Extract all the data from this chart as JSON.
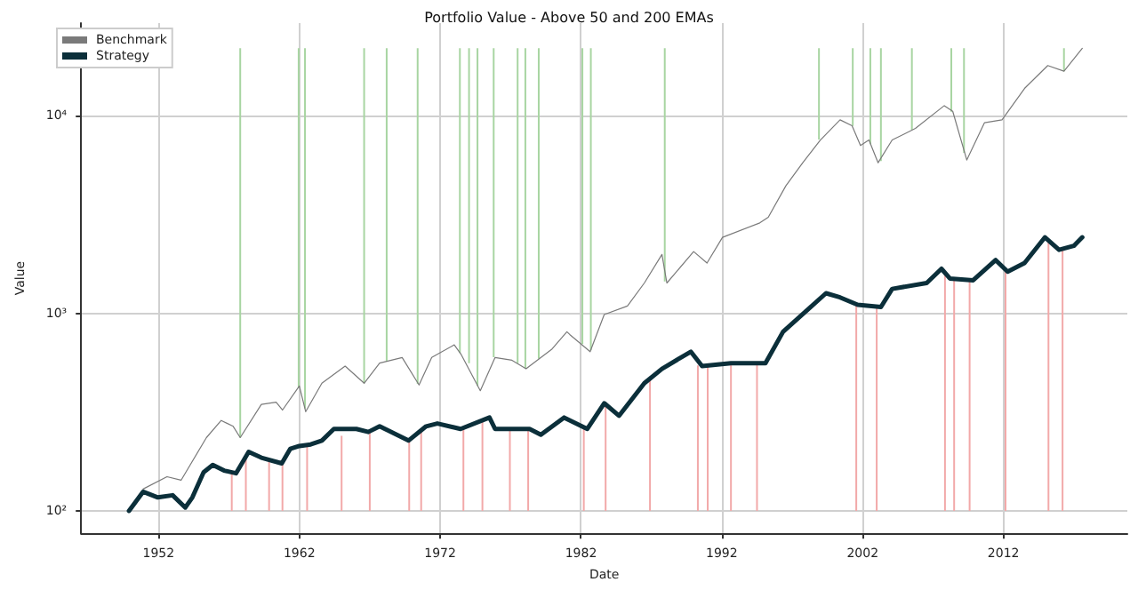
{
  "chart_data": {
    "type": "line",
    "title": "Portfolio Value - Above 50 and 200 EMAs",
    "xlabel": "Date",
    "ylabel": "Value",
    "xlim": [
      1946.5,
      2020.8
    ],
    "xticks": [
      1952,
      1962,
      1972,
      1982,
      1992,
      2002,
      2012
    ],
    "ylim": [
      77,
      29500
    ],
    "yticks": [
      {
        "value": 100,
        "label": "10²"
      },
      {
        "value": 1000,
        "label": "10³"
      },
      {
        "value": 10000,
        "label": "10⁴"
      }
    ],
    "log": "y",
    "grid": true,
    "legend": "top left",
    "marker": "none",
    "line_style": "solid",
    "series": [
      {
        "color": "#a8d5a2",
        "x": [
          1957.8,
          1957.8
        ],
        "values": [
          22000,
          235
        ]
      },
      {
        "color": "#a8d5a2",
        "x": [
          1961.95,
          1961.95
        ],
        "values": [
          22000,
          420
        ]
      },
      {
        "color": "#a8d5a2",
        "x": [
          1962.4,
          1962.4
        ],
        "values": [
          22000,
          330
        ]
      },
      {
        "color": "#a8d5a2",
        "x": [
          1966.6,
          1966.6
        ],
        "values": [
          22000,
          443
        ]
      },
      {
        "color": "#a8d5a2",
        "x": [
          1968.2,
          1968.2
        ],
        "values": [
          22000,
          570
        ]
      },
      {
        "color": "#a8d5a2",
        "x": [
          1970.4,
          1970.4
        ],
        "values": [
          22000,
          440
        ]
      },
      {
        "color": "#a8d5a2",
        "x": [
          1973.4,
          1973.4
        ],
        "values": [
          22000,
          630
        ]
      },
      {
        "color": "#a8d5a2",
        "x": [
          1974.05,
          1974.05
        ],
        "values": [
          22000,
          560
        ]
      },
      {
        "color": "#a8d5a2",
        "x": [
          1974.65,
          1974.65
        ],
        "values": [
          22000,
          430
        ]
      },
      {
        "color": "#a8d5a2",
        "x": [
          1975.8,
          1975.8
        ],
        "values": [
          22000,
          600
        ]
      },
      {
        "color": "#a8d5a2",
        "x": [
          1977.5,
          1977.5
        ],
        "values": [
          22000,
          560
        ]
      },
      {
        "color": "#a8d5a2",
        "x": [
          1978.05,
          1978.05
        ],
        "values": [
          22000,
          525
        ]
      },
      {
        "color": "#a8d5a2",
        "x": [
          1979,
          1979
        ],
        "values": [
          22000,
          590
        ]
      },
      {
        "color": "#a8d5a2",
        "x": [
          1982.1,
          1982.1
        ],
        "values": [
          22000,
          700
        ]
      },
      {
        "color": "#a8d5a2",
        "x": [
          1982.7,
          1982.7
        ],
        "values": [
          22000,
          650
        ]
      },
      {
        "color": "#a8d5a2",
        "x": [
          1987.95,
          1987.95
        ],
        "values": [
          22000,
          1450
        ]
      },
      {
        "color": "#a8d5a2",
        "x": [
          1998.9,
          1998.9
        ],
        "values": [
          22000,
          7600
        ]
      },
      {
        "color": "#a8d5a2",
        "x": [
          2001.3,
          2001.3
        ],
        "values": [
          22000,
          8900
        ]
      },
      {
        "color": "#a8d5a2",
        "x": [
          2002.55,
          2002.55
        ],
        "values": [
          22000,
          7200
        ]
      },
      {
        "color": "#a8d5a2",
        "x": [
          2003.3,
          2003.3
        ],
        "values": [
          22000,
          5900
        ]
      },
      {
        "color": "#a8d5a2",
        "x": [
          2005.5,
          2005.5
        ],
        "values": [
          22000,
          8500
        ]
      },
      {
        "color": "#a8d5a2",
        "x": [
          2008.3,
          2008.3
        ],
        "values": [
          22000,
          10500
        ]
      },
      {
        "color": "#a8d5a2",
        "x": [
          2009.2,
          2009.2
        ],
        "values": [
          22000,
          6500
        ]
      },
      {
        "color": "#a8d5a2",
        "x": [
          2016.3,
          2016.3
        ],
        "values": [
          22000,
          16830
        ]
      },
      {
        "color": "#f2a9a9",
        "x": [
          1957.2,
          1957.2
        ],
        "values": [
          100,
          158
        ]
      },
      {
        "color": "#f2a9a9",
        "x": [
          1958.2,
          1958.2
        ],
        "values": [
          100,
          190
        ]
      },
      {
        "color": "#f2a9a9",
        "x": [
          1959.85,
          1959.85
        ],
        "values": [
          100,
          180
        ]
      },
      {
        "color": "#f2a9a9",
        "x": [
          1960.8,
          1960.8
        ],
        "values": [
          100,
          174
        ]
      },
      {
        "color": "#f2a9a9",
        "x": [
          1962.55,
          1962.55
        ],
        "values": [
          100,
          215
        ]
      },
      {
        "color": "#f2a9a9",
        "x": [
          1965,
          1965
        ],
        "values": [
          100,
          240
        ]
      },
      {
        "color": "#f2a9a9",
        "x": [
          1967,
          1967
        ],
        "values": [
          100,
          252
        ]
      },
      {
        "color": "#f2a9a9",
        "x": [
          1969.8,
          1969.8
        ],
        "values": [
          100,
          228
        ]
      },
      {
        "color": "#f2a9a9",
        "x": [
          1970.65,
          1970.65
        ],
        "values": [
          100,
          255
        ]
      },
      {
        "color": "#f2a9a9",
        "x": [
          1973.65,
          1973.65
        ],
        "values": [
          100,
          265
        ]
      },
      {
        "color": "#f2a9a9",
        "x": [
          1975,
          1975
        ],
        "values": [
          100,
          285
        ]
      },
      {
        "color": "#f2a9a9",
        "x": [
          1976.95,
          1976.95
        ],
        "values": [
          100,
          262
        ]
      },
      {
        "color": "#f2a9a9",
        "x": [
          1978.25,
          1978.25
        ],
        "values": [
          100,
          260
        ]
      },
      {
        "color": "#f2a9a9",
        "x": [
          1982.2,
          1982.2
        ],
        "values": [
          100,
          265
        ]
      },
      {
        "color": "#f2a9a9",
        "x": [
          1983.75,
          1983.75
        ],
        "values": [
          100,
          345
        ]
      },
      {
        "color": "#f2a9a9",
        "x": [
          1986.9,
          1986.9
        ],
        "values": [
          100,
          460
        ]
      },
      {
        "color": "#f2a9a9",
        "x": [
          1990.3,
          1990.3
        ],
        "values": [
          100,
          545
        ]
      },
      {
        "color": "#f2a9a9",
        "x": [
          1991,
          1991
        ],
        "values": [
          100,
          550
        ]
      },
      {
        "color": "#f2a9a9",
        "x": [
          1992.65,
          1992.65
        ],
        "values": [
          100,
          560
        ]
      },
      {
        "color": "#f2a9a9",
        "x": [
          1994.5,
          1994.5
        ],
        "values": [
          100,
          560
        ]
      },
      {
        "color": "#f2a9a9",
        "x": [
          2001.55,
          2001.55
        ],
        "values": [
          100,
          1110
        ]
      },
      {
        "color": "#f2a9a9",
        "x": [
          2003,
          2003
        ],
        "values": [
          100,
          1080
        ]
      },
      {
        "color": "#f2a9a9",
        "x": [
          2007.85,
          2007.85
        ],
        "values": [
          100,
          1600
        ]
      },
      {
        "color": "#f2a9a9",
        "x": [
          2008.5,
          2008.5
        ],
        "values": [
          100,
          1500
        ]
      },
      {
        "color": "#f2a9a9",
        "x": [
          2009.6,
          2009.6
        ],
        "values": [
          100,
          1470
        ]
      },
      {
        "color": "#f2a9a9",
        "x": [
          2012.15,
          2012.15
        ],
        "values": [
          100,
          1650
        ]
      },
      {
        "color": "#f2a9a9",
        "x": [
          2015.2,
          2015.2
        ],
        "values": [
          100,
          2300
        ]
      },
      {
        "color": "#f2a9a9",
        "x": [
          2016.2,
          2016.2
        ],
        "values": [
          100,
          2120
        ]
      },
      {
        "name": "Benchmark",
        "color": "#7a7a7a",
        "x": [
          1950.9,
          1952.6,
          1953.6,
          1955.4,
          1956.45,
          1957.3,
          1957.8,
          1959.3,
          1960.35,
          1960.8,
          1962.0,
          1962.45,
          1963.6,
          1965.25,
          1966.6,
          1967.7,
          1969.3,
          1970.5,
          1971.4,
          1973.0,
          1973.5,
          1974.85,
          1975.9,
          1977.1,
          1978.1,
          1979.95,
          1981.0,
          1981.2,
          1982.65,
          1983.65,
          1985.3,
          1986.5,
          1987.75,
          1988.1,
          1990.0,
          1990.95,
          1992.05,
          1994.7,
          1995.3,
          1996.55,
          1997.75,
          1999.0,
          2000.4,
          2001.25,
          2001.85,
          2002.45,
          2003.1,
          2004.1,
          2005.75,
          2007.8,
          2008.4,
          2009.4,
          2010.65,
          2011.9,
          2013.5,
          2015.15,
          2016.3,
          2017.6
        ],
        "values": [
          129,
          149,
          143,
          235,
          287,
          268,
          235,
          346,
          355,
          324,
          429,
          318,
          443,
          541,
          443,
          560,
          598,
          434,
          598,
          693,
          618,
          406,
          598,
          579,
          524,
          661,
          807,
          782,
          640,
          986,
          1090,
          1425,
          1988,
          1425,
          2056,
          1799,
          2428,
          2872,
          3069,
          4426,
          5790,
          7550,
          9550,
          8920,
          7080,
          7550,
          5790,
          7550,
          8640,
          11270,
          10550,
          5980,
          9230,
          9550,
          13770,
          17990,
          16830,
          21970
        ]
      },
      {
        "name": "Strategy",
        "color": "#0b2f3a",
        "x": [
          1949.9,
          1950.9,
          1951.95,
          1953.0,
          1953.9,
          1954.4,
          1955.2,
          1955.85,
          1956.65,
          1957.5,
          1958.4,
          1959.3,
          1960.75,
          1961.35,
          1962.0,
          1962.8,
          1963.6,
          1964.45,
          1966.05,
          1966.9,
          1967.7,
          1969.75,
          1971.0,
          1971.8,
          1973.45,
          1975.5,
          1975.9,
          1978.35,
          1979.15,
          1980.8,
          1982.45,
          1983.65,
          1984.7,
          1986.5,
          1987.75,
          1989.8,
          1990.6,
          1992.65,
          1995.1,
          1996.35,
          1997.95,
          1999.4,
          2000.4,
          2001.65,
          2003.3,
          2004.1,
          2006.55,
          2007.6,
          2008.2,
          2009.85,
          2011.45,
          2012.3,
          2013.5,
          2014.95,
          2015.95,
          2017.0,
          2017.6
        ],
        "values": [
          100,
          125,
          117,
          120,
          104,
          117,
          157,
          171,
          160,
          155,
          199,
          186,
          174,
          206,
          213,
          217,
          227,
          260,
          260,
          251,
          268,
          227,
          268,
          277,
          260,
          297,
          260,
          260,
          243,
          297,
          260,
          351,
          303,
          443,
          524,
          640,
          541,
          560,
          560,
          807,
          1021,
          1265,
          1205,
          1105,
          1077,
          1331,
          1425,
          1682,
          1502,
          1471,
          1862,
          1626,
          1799,
          2428,
          2098,
          2198,
          2428
        ]
      }
    ]
  }
}
